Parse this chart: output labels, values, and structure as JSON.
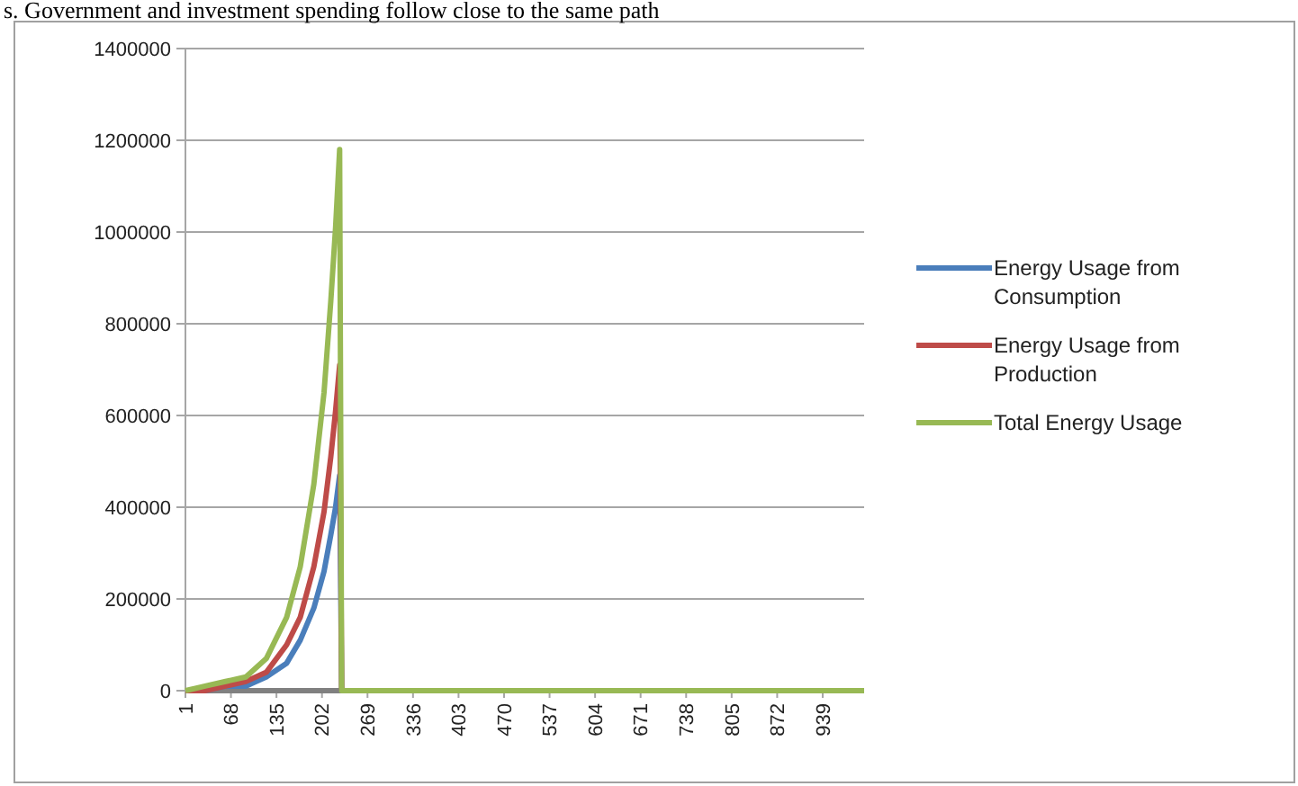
{
  "chart_data": {
    "type": "line",
    "annotations": [
      "s. Government and investment spending follow close to the same path"
    ],
    "xlim": [
      1,
      1000
    ],
    "xticks": [
      1,
      68,
      135,
      202,
      269,
      336,
      403,
      470,
      537,
      604,
      671,
      738,
      805,
      872,
      939
    ],
    "ylim": [
      0,
      1400000
    ],
    "yticks": [
      0,
      200000,
      400000,
      600000,
      800000,
      1000000,
      1200000,
      1400000
    ],
    "grid": "y",
    "legend": "right",
    "marker": "none",
    "line_style": "solid",
    "series": [
      {
        "color": "#808080",
        "x": [
          1,
          231
        ],
        "values": [
          0,
          0
        ]
      },
      {
        "name": "Energy Usage from Consumption",
        "color": "#4a7ebb",
        "x": [
          1,
          30,
          60,
          90,
          120,
          150,
          170,
          190,
          205,
          215,
          222,
          228,
          231
        ],
        "values": [
          0,
          0,
          10000,
          10000,
          30000,
          60000,
          110000,
          180000,
          260000,
          340000,
          400000,
          470000,
          0
        ]
      },
      {
        "name": "Energy Usage from Production",
        "color": "#be4b48",
        "x": [
          1,
          30,
          60,
          90,
          120,
          150,
          170,
          190,
          205,
          215,
          222,
          228,
          231
        ],
        "values": [
          0,
          0,
          10000,
          20000,
          40000,
          100000,
          160000,
          270000,
          390000,
          510000,
          610000,
          710000,
          0
        ]
      },
      {
        "name": "Total Energy Usage",
        "color": "#98b954",
        "x": [
          1,
          30,
          60,
          90,
          120,
          150,
          170,
          190,
          205,
          215,
          222,
          228,
          231,
          1000
        ],
        "values": [
          0,
          10000,
          20000,
          30000,
          70000,
          160000,
          270000,
          450000,
          650000,
          850000,
          1010000,
          1180000,
          0,
          0
        ]
      }
    ]
  }
}
